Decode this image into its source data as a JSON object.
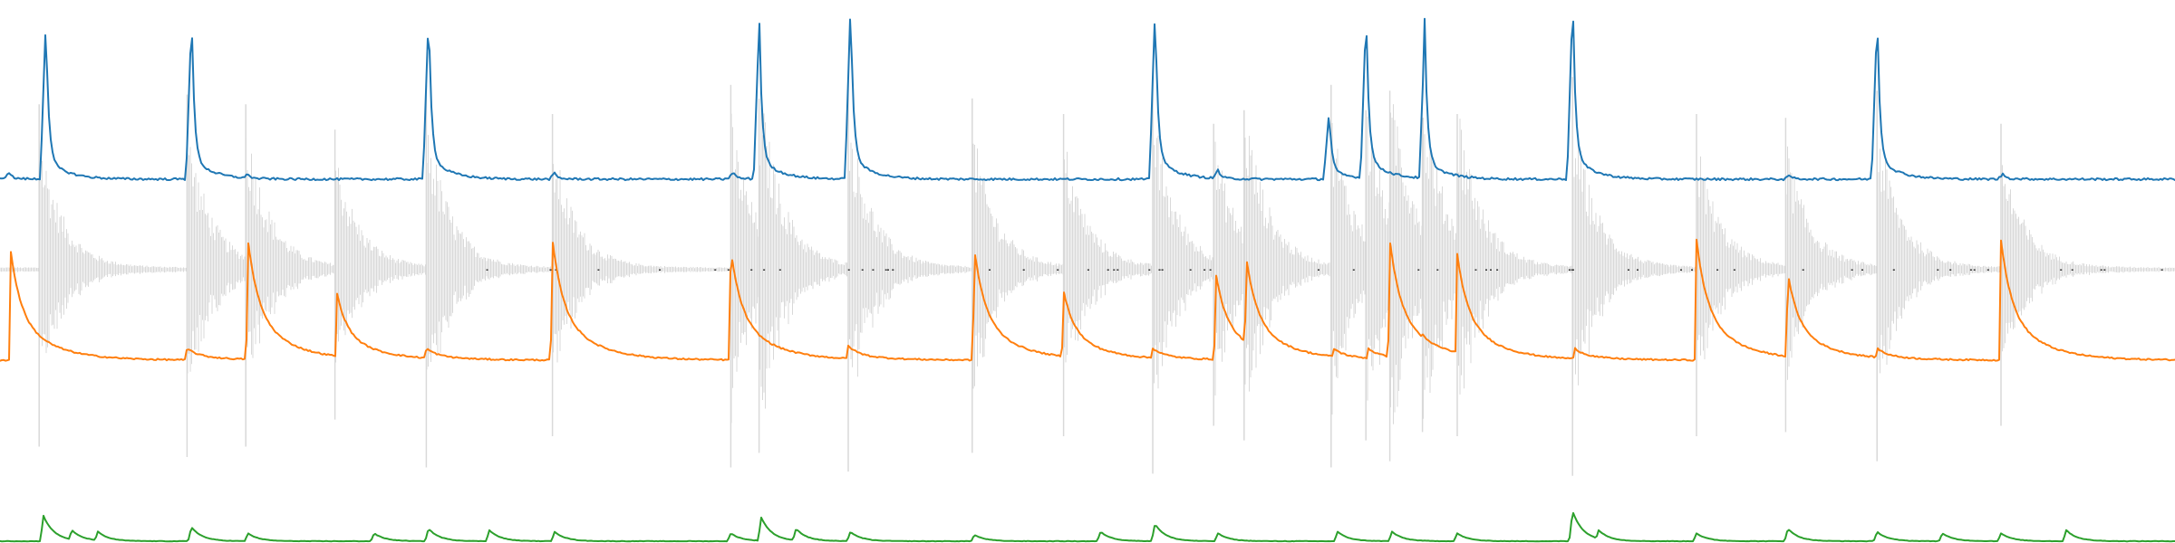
{
  "chart_data": {
    "type": "line",
    "title": "",
    "xlabel": "",
    "ylabel": "",
    "axes_visible": false,
    "grid": false,
    "legend": "none",
    "xlim": [
      0,
      100
    ],
    "series_style": {
      "waveform": "#d9d9d9",
      "onset_envelope": "#1f77b4",
      "decay_envelope": "#ff7f0e",
      "energy": "#2ca02c"
    },
    "events": [
      {
        "t": 1.8,
        "a": 0.85
      },
      {
        "t": 8.6,
        "a": 0.9
      },
      {
        "t": 11.3,
        "a": 0.85
      },
      {
        "t": 15.4,
        "a": 0.72
      },
      {
        "t": 19.6,
        "a": 0.95
      },
      {
        "t": 25.4,
        "a": 0.8
      },
      {
        "t": 33.6,
        "a": 0.95
      },
      {
        "t": 34.9,
        "a": 0.88
      },
      {
        "t": 39.0,
        "a": 0.97
      },
      {
        "t": 44.7,
        "a": 0.88
      },
      {
        "t": 48.9,
        "a": 0.8
      },
      {
        "t": 53.0,
        "a": 0.98
      },
      {
        "t": 55.8,
        "a": 0.75
      },
      {
        "t": 57.2,
        "a": 0.82
      },
      {
        "t": 61.2,
        "a": 0.95
      },
      {
        "t": 62.8,
        "a": 0.82
      },
      {
        "t": 63.9,
        "a": 0.92
      },
      {
        "t": 65.4,
        "a": 0.78
      },
      {
        "t": 67.0,
        "a": 0.8
      },
      {
        "t": 72.3,
        "a": 0.99
      },
      {
        "t": 78.0,
        "a": 0.8
      },
      {
        "t": 82.1,
        "a": 0.78
      },
      {
        "t": 86.3,
        "a": 0.92
      },
      {
        "t": 92.0,
        "a": 0.75
      }
    ],
    "series": [
      {
        "key": "onset_envelope",
        "baseline": 0.0,
        "peaks": [
          {
            "t": 2.1,
            "v": 0.88
          },
          {
            "t": 8.8,
            "v": 0.9
          },
          {
            "t": 19.7,
            "v": 0.93
          },
          {
            "t": 34.9,
            "v": 0.88
          },
          {
            "t": 39.1,
            "v": 0.97
          },
          {
            "t": 53.1,
            "v": 0.95
          },
          {
            "t": 61.1,
            "v": 0.37
          },
          {
            "t": 62.8,
            "v": 0.92
          },
          {
            "t": 65.5,
            "v": 0.8
          },
          {
            "t": 72.3,
            "v": 1.0
          },
          {
            "t": 86.3,
            "v": 0.9
          },
          {
            "t": 11.4,
            "v": 0.03
          },
          {
            "t": 25.5,
            "v": 0.03
          },
          {
            "t": 56.0,
            "v": 0.05
          },
          {
            "t": 82.3,
            "v": 0.02
          },
          {
            "t": 92.1,
            "v": 0.03
          },
          {
            "t": 0.4,
            "v": 0.04
          },
          {
            "t": 33.7,
            "v": 0.04
          }
        ]
      },
      {
        "key": "decay_envelope",
        "baseline": 0.0,
        "peaks": [
          {
            "t": 0.5,
            "v": 0.9
          },
          {
            "t": 8.6,
            "v": 0.1
          },
          {
            "t": 11.4,
            "v": 1.0
          },
          {
            "t": 15.5,
            "v": 0.55
          },
          {
            "t": 19.6,
            "v": 0.1
          },
          {
            "t": 25.4,
            "v": 1.0
          },
          {
            "t": 33.6,
            "v": 0.92
          },
          {
            "t": 39.0,
            "v": 0.12
          },
          {
            "t": 44.8,
            "v": 0.92
          },
          {
            "t": 48.9,
            "v": 0.58
          },
          {
            "t": 53.0,
            "v": 0.1
          },
          {
            "t": 55.9,
            "v": 0.72
          },
          {
            "t": 57.3,
            "v": 0.85
          },
          {
            "t": 61.3,
            "v": 0.1
          },
          {
            "t": 62.9,
            "v": 0.1
          },
          {
            "t": 63.9,
            "v": 1.0
          },
          {
            "t": 65.4,
            "v": 0.22
          },
          {
            "t": 67.0,
            "v": 0.88
          },
          {
            "t": 72.4,
            "v": 0.1
          },
          {
            "t": 78.0,
            "v": 1.0
          },
          {
            "t": 82.2,
            "v": 0.72
          },
          {
            "t": 86.3,
            "v": 0.1
          },
          {
            "t": 92.0,
            "v": 1.0
          }
        ]
      },
      {
        "key": "energy",
        "baseline": 0.0,
        "peaks": [
          {
            "t": 2.0,
            "v": 0.8
          },
          {
            "t": 3.3,
            "v": 0.35
          },
          {
            "t": 4.5,
            "v": 0.3
          },
          {
            "t": 8.8,
            "v": 0.45
          },
          {
            "t": 11.4,
            "v": 0.25
          },
          {
            "t": 17.2,
            "v": 0.25
          },
          {
            "t": 19.7,
            "v": 0.4
          },
          {
            "t": 22.5,
            "v": 0.35
          },
          {
            "t": 25.5,
            "v": 0.3
          },
          {
            "t": 33.6,
            "v": 0.25
          },
          {
            "t": 35.0,
            "v": 0.75
          },
          {
            "t": 36.6,
            "v": 0.4
          },
          {
            "t": 39.1,
            "v": 0.3
          },
          {
            "t": 44.8,
            "v": 0.2
          },
          {
            "t": 50.6,
            "v": 0.3
          },
          {
            "t": 53.1,
            "v": 0.55
          },
          {
            "t": 56.0,
            "v": 0.25
          },
          {
            "t": 61.5,
            "v": 0.3
          },
          {
            "t": 64.0,
            "v": 0.3
          },
          {
            "t": 67.0,
            "v": 0.25
          },
          {
            "t": 72.3,
            "v": 0.95
          },
          {
            "t": 73.5,
            "v": 0.35
          },
          {
            "t": 78.0,
            "v": 0.25
          },
          {
            "t": 82.2,
            "v": 0.4
          },
          {
            "t": 86.3,
            "v": 0.3
          },
          {
            "t": 89.3,
            "v": 0.25
          },
          {
            "t": 92.0,
            "v": 0.25
          },
          {
            "t": 95.0,
            "v": 0.35
          }
        ]
      }
    ]
  }
}
